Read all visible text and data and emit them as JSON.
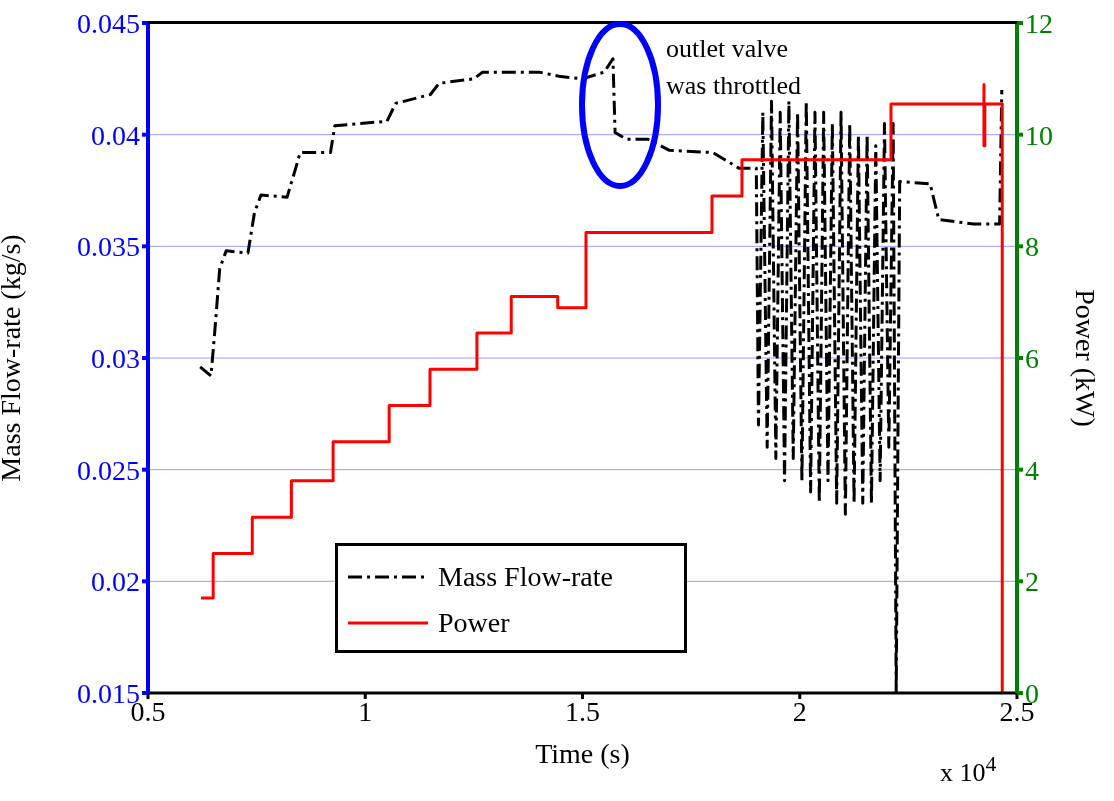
{
  "chart_data": {
    "type": "line",
    "xlabel": "Time (s)",
    "ylabel": "Mass Flow-rate (kg/s)",
    "y2label": "Power (kW)",
    "xlim": [
      0.5,
      2.5
    ],
    "xticks": [
      0.5,
      1,
      1.5,
      2,
      2.5
    ],
    "ylim": [
      0.015,
      0.045
    ],
    "yticks": [
      0.015,
      0.02,
      0.025,
      0.03,
      0.035,
      0.04,
      0.045
    ],
    "y2lim": [
      0,
      12
    ],
    "y2ticks": [
      0,
      2,
      4,
      6,
      8,
      10,
      12
    ],
    "grid": true,
    "legend": "bottom",
    "annotations": [
      "outlet valve was throttled",
      "x 10$^{4}$"
    ],
    "series": [
      {
        "name": "Mass Flow-rate",
        "color": "#000000",
        "line_style": "dashed",
        "x": [
          0.62,
          0.645,
          0.655,
          0.665,
          0.68,
          0.73,
          0.745,
          0.76,
          0.82,
          0.84,
          0.85,
          0.92,
          0.93,
          1.05,
          1.07,
          1.15,
          1.17,
          1.25,
          1.27,
          1.4,
          1.45,
          1.5,
          1.55,
          1.57,
          1.575,
          1.6,
          1.65,
          1.7,
          1.8,
          1.86,
          1.9,
          1.905,
          1.915,
          1.925,
          1.935,
          1.945,
          1.955,
          1.965,
          1.975,
          1.985,
          1.995,
          2.005,
          2.015,
          2.025,
          2.035,
          2.045,
          2.055,
          2.065,
          2.075,
          2.085,
          2.095,
          2.105,
          2.115,
          2.125,
          2.135,
          2.145,
          2.155,
          2.165,
          2.175,
          2.185,
          2.195,
          2.205,
          2.215,
          2.222,
          2.23,
          2.3,
          2.32,
          2.4,
          2.46,
          2.465
        ],
        "values": [
          0.0296,
          0.0292,
          0.0315,
          0.034,
          0.0348,
          0.0347,
          0.0365,
          0.0373,
          0.0372,
          0.0385,
          0.0392,
          0.0392,
          0.0404,
          0.0406,
          0.0414,
          0.0418,
          0.0423,
          0.0425,
          0.0428,
          0.0428,
          0.0426,
          0.0425,
          0.0428,
          0.0434,
          0.0401,
          0.0398,
          0.0398,
          0.0393,
          0.0392,
          0.0385,
          0.0385,
          0.027,
          0.041,
          0.026,
          0.0415,
          0.0255,
          0.041,
          0.0245,
          0.0415,
          0.0255,
          0.041,
          0.0245,
          0.0415,
          0.024,
          0.041,
          0.0235,
          0.041,
          0.0245,
          0.0405,
          0.0235,
          0.041,
          0.023,
          0.0405,
          0.0235,
          0.04,
          0.0235,
          0.04,
          0.0235,
          0.0395,
          0.0245,
          0.0405,
          0.026,
          0.0405,
          0.015,
          0.0379,
          0.0378,
          0.0362,
          0.036,
          0.036,
          0.042
        ]
      },
      {
        "name": "Power",
        "type": "step",
        "color": "#ff0000",
        "axis": "y2",
        "line_style": "solid",
        "x": [
          0.622,
          0.65,
          0.74,
          0.83,
          0.926,
          1.055,
          1.149,
          1.257,
          1.336,
          1.443,
          1.508,
          1.798,
          1.867,
          2.21,
          2.424,
          2.424,
          2.426,
          2.466,
          2.466
        ],
        "values": [
          1.7,
          2.5,
          3.15,
          3.8,
          4.5,
          5.15,
          5.8,
          6.45,
          7.1,
          6.9,
          8.25,
          8.9,
          9.55,
          10.55,
          10.9,
          9.8,
          10.55,
          10.55,
          0
        ]
      }
    ]
  }
}
